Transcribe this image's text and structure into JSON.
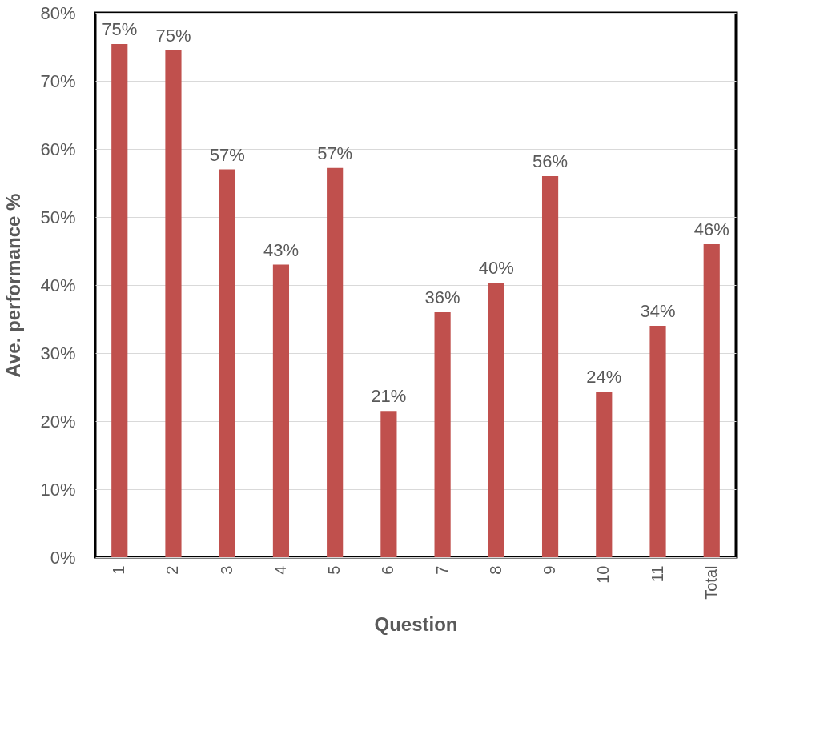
{
  "chart_data": {
    "type": "bar",
    "xlabel": "Question",
    "ylabel": "Ave. performance %",
    "categories": [
      "1",
      "2",
      "3",
      "4",
      "5",
      "6",
      "7",
      "8",
      "9",
      "10",
      "11",
      "Total"
    ],
    "values": [
      75.4,
      74.5,
      57,
      43,
      57.2,
      21.5,
      36,
      40.3,
      56,
      24.3,
      34,
      46
    ],
    "value_labels": [
      "75%",
      "75%",
      "57%",
      "43%",
      "57%",
      "21%",
      "36%",
      "40%",
      "56%",
      "24%",
      "34%",
      "46%"
    ],
    "color": "#c0504d",
    "ylim": [
      0,
      80
    ],
    "yticks": [
      {
        "value": 0,
        "label": "0%"
      },
      {
        "value": 10,
        "label": "10%"
      },
      {
        "value": 20,
        "label": "20%"
      },
      {
        "value": 30,
        "label": "30%"
      },
      {
        "value": 40,
        "label": "40%"
      },
      {
        "value": 50,
        "label": "50%"
      },
      {
        "value": 60,
        "label": "60%"
      },
      {
        "value": 70,
        "label": "70%"
      },
      {
        "value": 80,
        "label": "80%"
      }
    ],
    "grid": "y"
  }
}
